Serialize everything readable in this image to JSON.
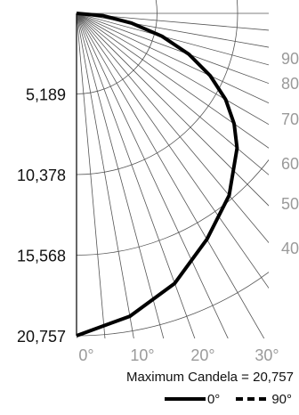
{
  "chart_data": {
    "type": "polar",
    "title": "",
    "max_candela_text": "Maximum Candela = 20,757",
    "radial_ticks": [
      "5,189",
      "10,378",
      "15,568",
      "20,757"
    ],
    "angle_ticks_bottom": [
      "0°",
      "10°",
      "20°",
      "30°"
    ],
    "angle_ticks_right": [
      "40",
      "50",
      "60",
      "70",
      "80",
      "90"
    ],
    "radial_max": 20757,
    "angle_range_deg": [
      0,
      90
    ],
    "series": [
      {
        "name": "0°",
        "style": "solid",
        "angles_deg": [
          0,
          10,
          20,
          30,
          40,
          50,
          55,
          60,
          65,
          70,
          75,
          80,
          85,
          90
        ],
        "candela": [
          20757,
          19800,
          18500,
          16800,
          15300,
          13500,
          12400,
          11100,
          9500,
          7700,
          5700,
          3600,
          1700,
          0
        ]
      }
    ],
    "legend": [
      {
        "label": "0°",
        "style": "solid"
      },
      {
        "label": "90°",
        "style": "dashed"
      }
    ],
    "colors": {
      "curve": "#000000",
      "grid": "#555555",
      "tick_text": "#111111",
      "angle_text": "#9a9a9a"
    }
  }
}
